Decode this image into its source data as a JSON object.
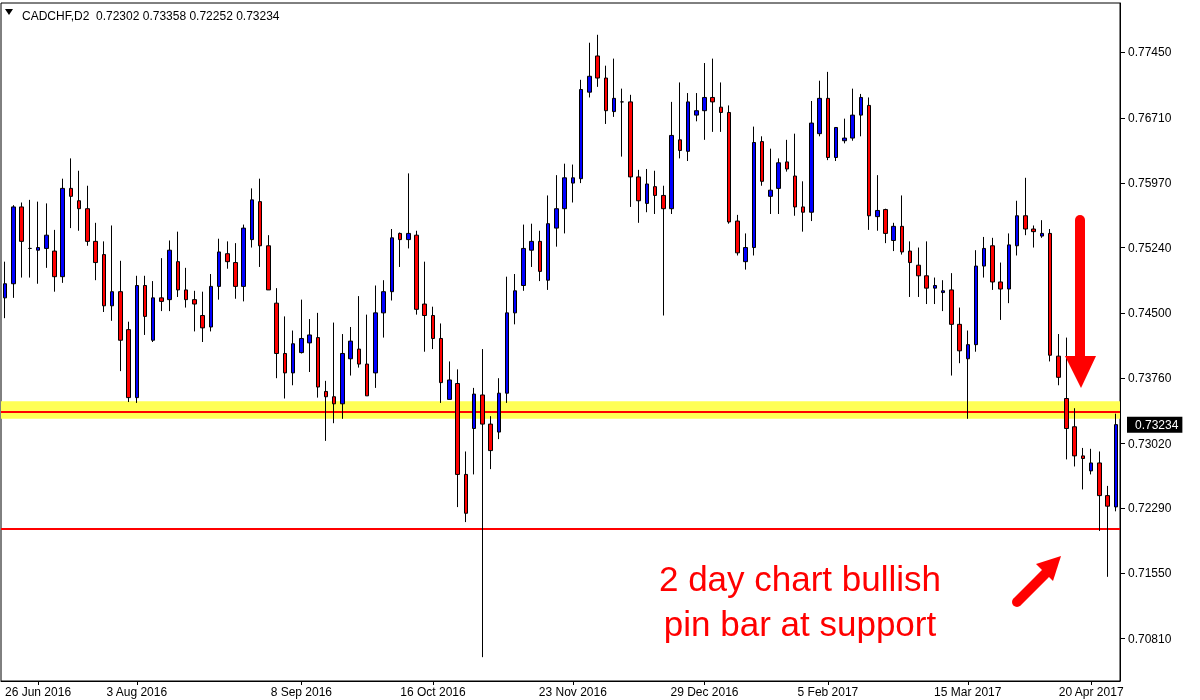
{
  "chart_data": {
    "type": "candlestick",
    "title": "CADCHF,D2  0.72302 0.73358 0.72252 0.73234",
    "categories": [
      null,
      null,
      null,
      null,
      "26 Jun 2016",
      null,
      null,
      null,
      null,
      null,
      null,
      null,
      null,
      null,
      null,
      null,
      "3 Aug 2016",
      null,
      null,
      null,
      null,
      null,
      null,
      null,
      null,
      null,
      null,
      null,
      null,
      null,
      null,
      null,
      null,
      null,
      null,
      null,
      "8 Sep 2016",
      null,
      null,
      null,
      null,
      null,
      null,
      null,
      null,
      null,
      null,
      null,
      null,
      null,
      null,
      null,
      "16 Oct 2016",
      null,
      null,
      null,
      null,
      null,
      null,
      null,
      null,
      null,
      null,
      null,
      null,
      null,
      null,
      null,
      null,
      "23 Nov 2016",
      null,
      null,
      null,
      null,
      null,
      null,
      null,
      null,
      null,
      null,
      null,
      null,
      null,
      null,
      null,
      "29 Dec 2016",
      null,
      null,
      null,
      null,
      null,
      null,
      null,
      null,
      null,
      null,
      null,
      null,
      null,
      null,
      "5 Feb 2017",
      null,
      null,
      null,
      null,
      null,
      null,
      null,
      null,
      null,
      null,
      null,
      null,
      null,
      null,
      null,
      null,
      "15 Mar 2017",
      null,
      null,
      null,
      null,
      null,
      null,
      null,
      null,
      null,
      null,
      null,
      null,
      null,
      null,
      "20 Apr 2017",
      null,
      null,
      null
    ],
    "ohlc": [
      [
        0.7467,
        0.7508,
        0.7444,
        0.7483
      ],
      [
        0.7483,
        0.7572,
        0.7467,
        0.757
      ],
      [
        0.757,
        0.7575,
        0.749,
        0.7531
      ],
      [
        0.7523,
        0.7578,
        0.749,
        0.7523
      ],
      [
        0.7521,
        0.7576,
        0.7483,
        0.7524
      ],
      [
        0.7523,
        0.7574,
        0.7501,
        0.7538
      ],
      [
        0.752,
        0.7544,
        0.7474,
        0.7491
      ],
      [
        0.7491,
        0.7602,
        0.7484,
        0.7591
      ],
      [
        0.7591,
        0.7625,
        0.7546,
        0.7582
      ],
      [
        0.7577,
        0.7611,
        0.7543,
        0.7568
      ],
      [
        0.7568,
        0.7594,
        0.7526,
        0.7531
      ],
      [
        0.7531,
        0.7552,
        0.7487,
        0.7507
      ],
      [
        0.7516,
        0.7531,
        0.7451,
        0.7458
      ],
      [
        0.7458,
        0.7549,
        0.7441,
        0.7474
      ],
      [
        0.7474,
        0.7509,
        0.7384,
        0.7419
      ],
      [
        0.7431,
        0.744,
        0.7349,
        0.7354
      ],
      [
        0.7354,
        0.7492,
        0.7348,
        0.7481
      ],
      [
        0.7481,
        0.7492,
        0.7425,
        0.7446
      ],
      [
        0.7419,
        0.7486,
        0.7417,
        0.7467
      ],
      [
        0.7467,
        0.7512,
        0.7452,
        0.7463
      ],
      [
        0.7465,
        0.7532,
        0.7452,
        0.7521
      ],
      [
        0.7508,
        0.7542,
        0.7468,
        0.7476
      ],
      [
        0.7476,
        0.7501,
        0.7456,
        0.7465
      ],
      [
        0.7465,
        0.7475,
        0.7429,
        0.746
      ],
      [
        0.7447,
        0.7474,
        0.7417,
        0.7433
      ],
      [
        0.7434,
        0.7494,
        0.7429,
        0.748
      ],
      [
        0.748,
        0.7534,
        0.7465,
        0.7519
      ],
      [
        0.7517,
        0.7531,
        0.75,
        0.7508
      ],
      [
        0.7507,
        0.7529,
        0.7466,
        0.748
      ],
      [
        0.748,
        0.755,
        0.7463,
        0.7546
      ],
      [
        0.7533,
        0.7591,
        0.7524,
        0.7578
      ],
      [
        0.7576,
        0.7602,
        0.7502,
        0.7526
      ],
      [
        0.7526,
        0.7538,
        0.7476,
        0.7476
      ],
      [
        0.7461,
        0.7478,
        0.7376,
        0.7404
      ],
      [
        0.7404,
        0.7446,
        0.7353,
        0.7382
      ],
      [
        0.7382,
        0.743,
        0.7368,
        0.7415
      ],
      [
        0.7405,
        0.7465,
        0.7404,
        0.7421
      ],
      [
        0.7416,
        0.7443,
        0.7383,
        0.7425
      ],
      [
        0.7422,
        0.745,
        0.7354,
        0.7366
      ],
      [
        0.7361,
        0.7373,
        0.7305,
        0.7355
      ],
      [
        0.7355,
        0.7439,
        0.7325,
        0.7347
      ],
      [
        0.7347,
        0.7426,
        0.733,
        0.7404
      ],
      [
        0.7398,
        0.7434,
        0.7379,
        0.7418
      ],
      [
        0.7409,
        0.7469,
        0.7388,
        0.7392
      ],
      [
        0.7392,
        0.7448,
        0.7356,
        0.7356
      ],
      [
        0.7382,
        0.7481,
        0.7365,
        0.745
      ],
      [
        0.745,
        0.7487,
        0.7422,
        0.7474
      ],
      [
        0.7474,
        0.7545,
        0.7464,
        0.7535
      ],
      [
        0.754,
        0.7541,
        0.7502,
        0.7533
      ],
      [
        0.7533,
        0.7608,
        0.7523,
        0.754
      ],
      [
        0.7538,
        0.7543,
        0.7448,
        0.7454
      ],
      [
        0.746,
        0.7508,
        0.7406,
        0.7447
      ],
      [
        0.7447,
        0.7457,
        0.7409,
        0.7421
      ],
      [
        0.7421,
        0.7438,
        0.7348,
        0.7371
      ],
      [
        0.7352,
        0.7395,
        0.7352,
        0.7374
      ],
      [
        0.737,
        0.7386,
        0.723,
        0.7267
      ],
      [
        0.7267,
        0.7293,
        0.7213,
        0.7223
      ],
      [
        0.7319,
        0.7365,
        0.7267,
        0.7358
      ],
      [
        0.7357,
        0.7409,
        0.706,
        0.7324
      ],
      [
        0.7324,
        0.7333,
        0.7273,
        0.7294
      ],
      [
        0.7315,
        0.7376,
        0.7307,
        0.7359
      ],
      [
        0.7359,
        0.7491,
        0.7348,
        0.745
      ],
      [
        0.745,
        0.7494,
        0.7437,
        0.7475
      ],
      [
        0.7481,
        0.755,
        0.7475,
        0.7523
      ],
      [
        0.7521,
        0.7551,
        0.7502,
        0.7531
      ],
      [
        0.7531,
        0.7543,
        0.7486,
        0.7497
      ],
      [
        0.7487,
        0.7583,
        0.7476,
        0.7551
      ],
      [
        0.7546,
        0.7606,
        0.7525,
        0.7568
      ],
      [
        0.7568,
        0.7619,
        0.754,
        0.7603
      ],
      [
        0.7597,
        0.7618,
        0.7575,
        0.7603
      ],
      [
        0.7602,
        0.7714,
        0.7597,
        0.7703
      ],
      [
        0.77,
        0.7756,
        0.7694,
        0.7718
      ],
      [
        0.7741,
        0.7765,
        0.7706,
        0.7716
      ],
      [
        0.7716,
        0.773,
        0.7664,
        0.7679
      ],
      [
        0.7678,
        0.7738,
        0.7672,
        0.7693
      ],
      [
        0.7689,
        0.7704,
        0.7627,
        0.7689
      ],
      [
        0.7689,
        0.7697,
        0.757,
        0.7604
      ],
      [
        0.7604,
        0.7612,
        0.7552,
        0.7577
      ],
      [
        0.7574,
        0.7613,
        0.7564,
        0.7596
      ],
      [
        0.7593,
        0.7611,
        0.7562,
        0.7583
      ],
      [
        0.7583,
        0.7594,
        0.7447,
        0.7568
      ],
      [
        0.7568,
        0.7689,
        0.7562,
        0.7651
      ],
      [
        0.7646,
        0.7711,
        0.7625,
        0.7634
      ],
      [
        0.7633,
        0.7699,
        0.7622,
        0.7689
      ],
      [
        0.7674,
        0.7699,
        0.7667,
        0.7679
      ],
      [
        0.7679,
        0.7733,
        0.7646,
        0.7694
      ],
      [
        0.7694,
        0.7738,
        0.7655,
        0.7689
      ],
      [
        0.7683,
        0.7711,
        0.7655,
        0.7677
      ],
      [
        0.7677,
        0.7685,
        0.7551,
        0.7553
      ],
      [
        0.7554,
        0.7561,
        0.7515,
        0.7518
      ],
      [
        0.7508,
        0.754,
        0.7499,
        0.7524
      ],
      [
        0.7524,
        0.7661,
        0.7515,
        0.7643
      ],
      [
        0.7644,
        0.765,
        0.7594,
        0.7599
      ],
      [
        0.7582,
        0.7636,
        0.7562,
        0.7589
      ],
      [
        0.7591,
        0.7625,
        0.7562,
        0.762
      ],
      [
        0.7621,
        0.7646,
        0.761,
        0.7613
      ],
      [
        0.7605,
        0.7653,
        0.756,
        0.757
      ],
      [
        0.757,
        0.7599,
        0.7542,
        0.7564
      ],
      [
        0.7564,
        0.769,
        0.7554,
        0.7665
      ],
      [
        0.7653,
        0.7713,
        0.765,
        0.7693
      ],
      [
        0.7693,
        0.7723,
        0.7623,
        0.7626
      ],
      [
        0.7626,
        0.766,
        0.7622,
        0.766
      ],
      [
        0.7645,
        0.767,
        0.7642,
        0.7648
      ],
      [
        0.7648,
        0.7704,
        0.7645,
        0.7674
      ],
      [
        0.7674,
        0.7698,
        0.765,
        0.7694
      ],
      [
        0.7685,
        0.7694,
        0.7544,
        0.756
      ],
      [
        0.7559,
        0.7606,
        0.7543,
        0.7566
      ],
      [
        0.7567,
        0.7568,
        0.7529,
        0.754
      ],
      [
        0.7532,
        0.7552,
        0.752,
        0.7548
      ],
      [
        0.7548,
        0.7583,
        0.7516,
        0.7519
      ],
      [
        0.752,
        0.7531,
        0.7468,
        0.7507
      ],
      [
        0.7504,
        0.7524,
        0.7468,
        0.7492
      ],
      [
        0.7492,
        0.7531,
        0.746,
        0.7478
      ],
      [
        0.7478,
        0.749,
        0.746,
        0.7481
      ],
      [
        0.7473,
        0.7487,
        0.7452,
        0.7475
      ],
      [
        0.7476,
        0.7495,
        0.7379,
        0.7437
      ],
      [
        0.7437,
        0.7456,
        0.7393,
        0.7407
      ],
      [
        0.7398,
        0.743,
        0.733,
        0.7414
      ],
      [
        0.7414,
        0.7521,
        0.7406,
        0.7503
      ],
      [
        0.7503,
        0.7536,
        0.749,
        0.7523
      ],
      [
        0.7526,
        0.7535,
        0.7476,
        0.7485
      ],
      [
        0.7485,
        0.7507,
        0.7442,
        0.7477
      ],
      [
        0.7477,
        0.754,
        0.7461,
        0.7527
      ],
      [
        0.7526,
        0.7577,
        0.7515,
        0.756
      ],
      [
        0.756,
        0.7603,
        0.7538,
        0.7545
      ],
      [
        0.7545,
        0.7549,
        0.7524,
        0.7542
      ],
      [
        0.7537,
        0.7555,
        0.7535,
        0.754
      ],
      [
        0.754,
        0.7545,
        0.7395,
        0.7402
      ],
      [
        0.7401,
        0.7426,
        0.7368,
        0.7377
      ],
      [
        0.7353,
        0.7422,
        0.7284,
        0.7319
      ],
      [
        0.7321,
        0.7342,
        0.7276,
        0.7288
      ],
      [
        0.7288,
        0.7297,
        0.725,
        0.7285
      ],
      [
        0.7271,
        0.7296,
        0.7267,
        0.728
      ],
      [
        0.728,
        0.7293,
        0.7203,
        0.7243
      ],
      [
        0.7243,
        0.7254,
        0.7151,
        0.7231
      ],
      [
        0.72302,
        0.73358,
        0.72252,
        0.73234
      ]
    ],
    "ylim": [
      0.7033,
      0.7801
    ],
    "yticks": [
      {
        "value": 0.7081,
        "label": "0.70810"
      },
      {
        "value": 0.7155,
        "label": "0.71550"
      },
      {
        "value": 0.7229,
        "label": "0.72290"
      },
      {
        "value": 0.7302,
        "label": "0.73020"
      },
      {
        "value": 0.7376,
        "label": "0.73760"
      },
      {
        "value": 0.745,
        "label": "0.74500"
      },
      {
        "value": 0.7524,
        "label": "0.75240"
      },
      {
        "value": 0.7597,
        "label": "0.75970"
      },
      {
        "value": 0.7671,
        "label": "0.76710"
      },
      {
        "value": 0.7745,
        "label": "0.77450"
      }
    ],
    "ref_lines": [
      {
        "axis": "y",
        "value": 0.7338,
        "color": "#ff0000"
      },
      {
        "axis": "y",
        "value": 0.7206,
        "color": "#ff0000"
      }
    ],
    "bands": [
      {
        "axis": "y",
        "from": 0.733,
        "to": 0.735,
        "color": "#ffff55"
      }
    ],
    "annotations": [
      "0.73234",
      "2 day chart bullish pin bar at support"
    ]
  }
}
